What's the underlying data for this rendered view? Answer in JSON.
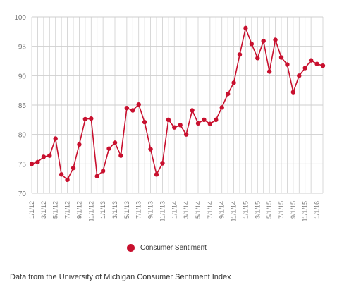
{
  "chart_data": {
    "type": "line",
    "legend_placement": "bottom",
    "grid": true,
    "colors": {
      "series": "#c8102e",
      "grid": "#cfcfcf",
      "axis_text": "#777777"
    },
    "y_ticks": [
      70,
      75,
      80,
      85,
      90,
      95,
      100
    ],
    "ylim": [
      70,
      100
    ],
    "x_tick_labels": [
      "1/1/12",
      "3/1/12",
      "5/1/12",
      "7/1/12",
      "9/1/12",
      "11/1/12",
      "1/1/13",
      "3/1/13",
      "5/1/13",
      "7/1/13",
      "9/1/13",
      "11/1/13",
      "1/1/14",
      "3/1/14",
      "5/1/14",
      "7/1/14",
      "9/1/14",
      "11/1/14",
      "1/1/15",
      "3/1/15",
      "5/1/15",
      "7/1/15",
      "9/1/15",
      "11/1/15",
      "1/1/16"
    ],
    "series": [
      {
        "name": "Consumer Sentiment",
        "values": [
          75.0,
          75.3,
          76.2,
          76.4,
          79.3,
          73.2,
          72.3,
          74.3,
          78.3,
          82.6,
          82.7,
          72.9,
          73.8,
          77.6,
          78.6,
          76.4,
          84.5,
          84.1,
          85.1,
          82.1,
          77.5,
          73.2,
          75.1,
          82.5,
          81.2,
          81.6,
          80.0,
          84.1,
          81.9,
          82.5,
          81.8,
          82.5,
          84.6,
          86.9,
          88.8,
          93.6,
          98.1,
          95.4,
          93.0,
          95.9,
          90.7,
          96.1,
          93.1,
          91.9,
          87.2,
          90.0,
          91.3,
          92.6,
          92.0,
          91.7
        ]
      }
    ]
  },
  "source_note": "Data from the University of Michigan Consumer Sentiment Index"
}
